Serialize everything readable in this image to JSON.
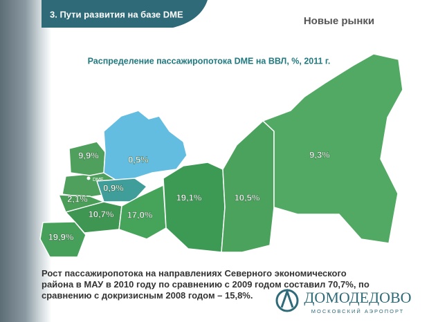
{
  "header": {
    "section": "3. Пути развития на базе DME",
    "topic": "Новые рынки"
  },
  "chart_data": {
    "type": "map",
    "title": "Распределение пассажиропотока DME на ВВЛ, %, 2011 г.",
    "marker_label": "DME",
    "values": [
      9.9,
      0.5,
      0.9,
      2.1,
      10.7,
      17.0,
      19.1,
      10.5,
      9.3,
      19.9
    ],
    "value_labels": [
      "9,9%",
      "0,5%",
      "0,9%",
      "2,1%",
      "10,7%",
      "17,0%",
      "19,1%",
      "10,5%",
      "9,3%",
      "19,9%"
    ],
    "colors": [
      "#4fa05c",
      "#62bde0",
      "#3f9e9a",
      "#4a9e58",
      "#3f9552",
      "#45a35a",
      "#3d9a55",
      "#4aa25c",
      "#52a963",
      "#46a05a"
    ]
  },
  "body": "Рост пассажиропотока на направлениях Северного экономического района в МАУ в 2010 году по сравнению с 2009 годом составил 70,7%, по сравнению с докризисным 2008 годом – 15,8%.",
  "logo": {
    "name": "ДОМОДЕДОВО",
    "subtitle": "МОСКОВСКИЙ АЭРОПОРТ"
  }
}
